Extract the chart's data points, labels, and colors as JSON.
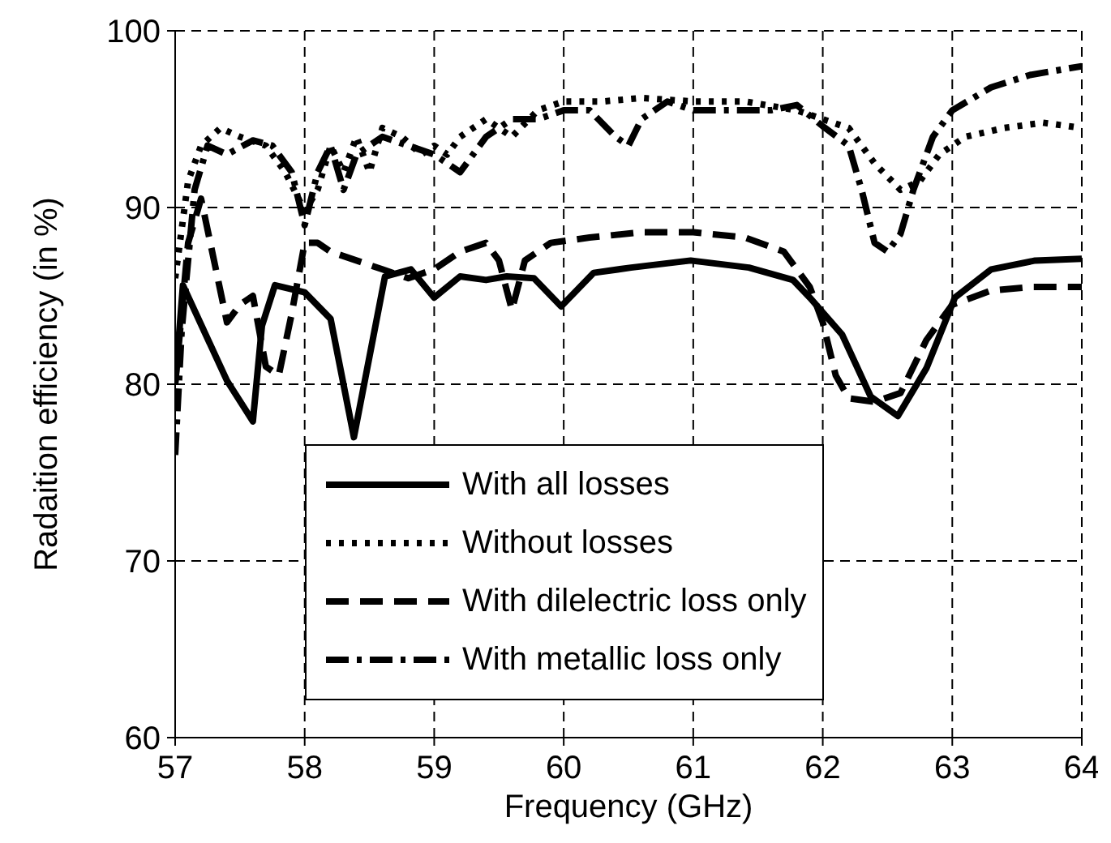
{
  "chart_data": {
    "type": "line",
    "xlabel": "Frequency (GHz)",
    "ylabel": "Radaition efficiency (in %)",
    "xlim": [
      57,
      64
    ],
    "xticks": [
      57,
      58,
      59,
      60,
      61,
      62,
      63,
      64
    ],
    "ylim": [
      60,
      100
    ],
    "yticks": [
      60,
      70,
      80,
      90,
      100
    ],
    "grid": true,
    "legend": "bottom",
    "marker": "none",
    "series": [
      {
        "name": "With all losses",
        "color": "#000000",
        "line_style": "solid",
        "x": [
          57.0,
          57.06,
          57.4,
          57.6,
          57.67,
          57.77,
          58.0,
          58.2,
          58.38,
          58.62,
          58.82,
          59.0,
          59.2,
          59.4,
          59.56,
          59.77,
          59.98,
          60.23,
          60.52,
          60.98,
          61.43,
          61.77,
          61.9,
          62.15,
          62.37,
          62.58,
          62.8,
          63.02,
          63.3,
          63.64,
          64.0
        ],
        "values": [
          80,
          85.6,
          80.2,
          77.9,
          83.3,
          85.6,
          85.2,
          83.7,
          77,
          86.1,
          86.5,
          84.9,
          86.1,
          85.9,
          86.1,
          86,
          84.4,
          86.3,
          86.6,
          87,
          86.6,
          85.9,
          84.9,
          82.8,
          79.3,
          78.2,
          80.9,
          84.9,
          86.5,
          87,
          87.1
        ]
      },
      {
        "name": "Without losses",
        "color": "#000000",
        "line_style": "dotted",
        "x": [
          57.0,
          57.1,
          57.2,
          57.35,
          57.5,
          57.7,
          57.85,
          58.0,
          58.1,
          58.2,
          58.3,
          58.4,
          58.5,
          58.6,
          58.75,
          58.9,
          59.0,
          59.1,
          59.2,
          59.4,
          59.6,
          59.8,
          60.0,
          60.3,
          60.6,
          61.0,
          61.4,
          61.8,
          62.0,
          62.2,
          62.4,
          62.6,
          62.75,
          62.9,
          63.1,
          63.4,
          63.7,
          64.0
        ],
        "values": [
          86,
          91.5,
          93.5,
          94.5,
          94,
          93.5,
          92,
          89.8,
          91,
          93.5,
          92,
          94,
          92,
          94.5,
          94,
          93,
          93.5,
          93,
          94,
          95,
          94,
          95.5,
          96,
          96,
          96.2,
          96,
          96,
          95.5,
          95,
          94.5,
          92.5,
          91,
          91.5,
          93,
          94,
          94.5,
          94.8,
          94.5
        ]
      },
      {
        "name": "With dilelectric loss only",
        "color": "#000000",
        "line_style": "dashed",
        "x": [
          57.0,
          57.1,
          57.2,
          57.3,
          57.4,
          57.5,
          57.6,
          57.7,
          57.8,
          57.9,
          58.0,
          58.1,
          58.2,
          58.4,
          58.6,
          58.8,
          59.0,
          59.2,
          59.4,
          59.5,
          59.6,
          59.7,
          59.9,
          60.2,
          60.6,
          61.0,
          61.4,
          61.7,
          61.9,
          62.0,
          62.1,
          62.2,
          62.4,
          62.6,
          62.8,
          63.0,
          63.3,
          63.6,
          64.0
        ],
        "values": [
          80,
          88,
          90.5,
          87,
          83.5,
          84.5,
          85,
          81,
          80.5,
          84,
          88,
          88,
          87.5,
          87,
          86.5,
          86,
          86.5,
          87.5,
          88,
          87,
          84.2,
          87,
          88,
          88.3,
          88.6,
          88.6,
          88.3,
          87.5,
          85.5,
          83.5,
          80.5,
          79.2,
          79,
          79.5,
          82.5,
          84.5,
          85.3,
          85.5,
          85.5
        ]
      },
      {
        "name": "With metallic loss only",
        "color": "#000000",
        "line_style": "dashdot",
        "x": [
          57.0,
          57.05,
          57.15,
          57.25,
          57.4,
          57.6,
          57.75,
          57.9,
          58.0,
          58.1,
          58.2,
          58.3,
          58.4,
          58.6,
          58.8,
          59.0,
          59.2,
          59.4,
          59.6,
          59.8,
          60.0,
          60.2,
          60.4,
          60.5,
          60.6,
          60.8,
          61.0,
          61.3,
          61.6,
          61.8,
          62.0,
          62.2,
          62.3,
          62.4,
          62.5,
          62.6,
          62.7,
          62.85,
          63.0,
          63.3,
          63.6,
          64.0
        ],
        "values": [
          76,
          83,
          91,
          93.5,
          93,
          93.8,
          93.5,
          92,
          89,
          92,
          93.5,
          91,
          93,
          94,
          93.5,
          93,
          92,
          94,
          95,
          95,
          95.5,
          95.5,
          94,
          93.5,
          95,
          96,
          95.5,
          95.5,
          95.5,
          95.8,
          94.6,
          93.5,
          91,
          88,
          87.5,
          88.5,
          91,
          94,
          95.5,
          96.8,
          97.5,
          98
        ]
      }
    ]
  }
}
